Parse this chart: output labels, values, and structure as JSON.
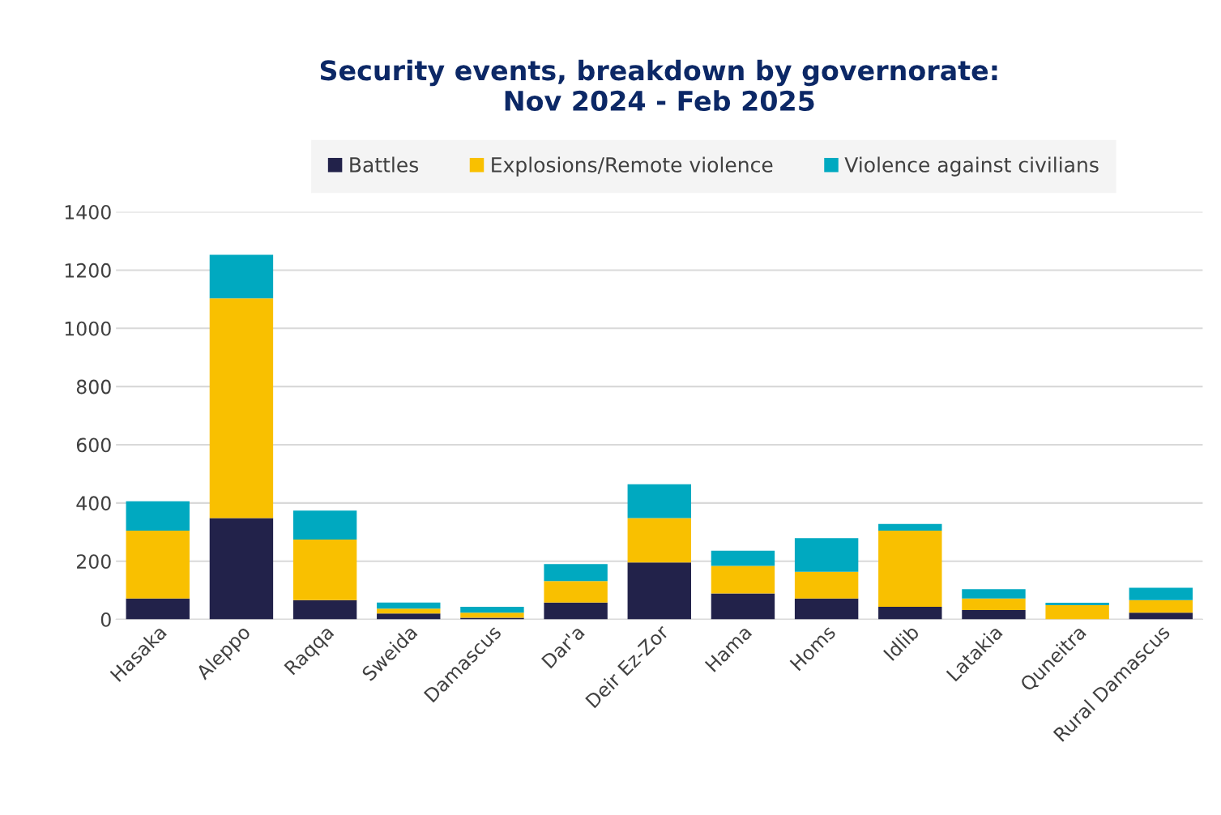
{
  "chart_data": {
    "type": "bar",
    "stacked": true,
    "title": "Security events, breakdown by governorate:\nNov 2024 - Feb 2025",
    "categories": [
      "Hasaka",
      "Aleppo",
      "Raqqa",
      "Sweida",
      "Damascus",
      "Dar'a",
      "Deir Ez-Zor",
      "Hama",
      "Homs",
      "Idlib",
      "Latakia",
      "Quneitra",
      "Rural Damascus"
    ],
    "series": [
      {
        "name": "Battles",
        "color": "#22224a",
        "values": [
          72,
          348,
          66,
          20,
          6,
          58,
          196,
          89,
          72,
          43,
          32,
          null,
          23
        ]
      },
      {
        "name": "Explosions/Remote violence",
        "color": "#f9c000",
        "values": [
          233,
          755,
          208,
          17,
          17,
          74,
          152,
          95,
          92,
          262,
          40,
          49,
          43
        ]
      },
      {
        "name": "Violence against civilians",
        "color": "#00a9c0",
        "values": [
          101,
          150,
          100,
          21,
          20,
          58,
          116,
          52,
          115,
          23,
          32,
          8,
          43
        ]
      }
    ],
    "ylim": [
      0,
      1400
    ],
    "yticks": [
      0,
      200,
      400,
      600,
      800,
      1000,
      1200,
      1400
    ],
    "grid": "y",
    "legend": "top"
  }
}
